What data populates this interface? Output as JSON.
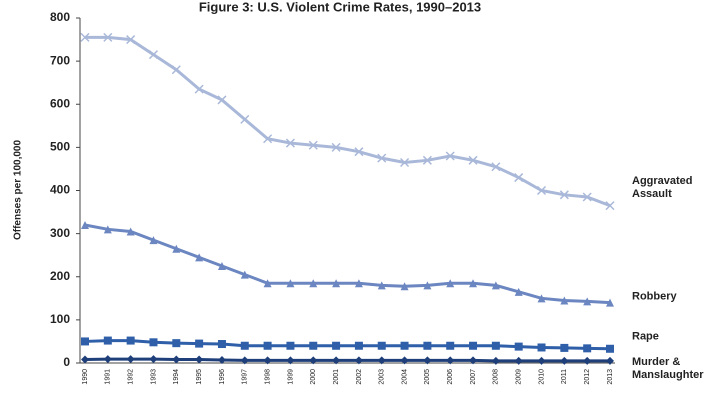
{
  "chart_data": {
    "type": "line",
    "title": "Figure 3: U.S. Violent Crime Rates, 1990–2013",
    "y_label": "Offenses per 100,000",
    "categories": [
      "1990",
      "1991",
      "1992",
      "1993",
      "1994",
      "1995",
      "1996",
      "1997",
      "1998",
      "1999",
      "2000",
      "2001",
      "2002",
      "2003",
      "2004",
      "2005",
      "2006",
      "2007",
      "2008",
      "2009",
      "2010",
      "2011",
      "2012",
      "2013"
    ],
    "series": [
      {
        "name": "Aggravated Assault",
        "color": "#a9b8d9",
        "marker": "x",
        "values": [
          755,
          755,
          750,
          715,
          680,
          635,
          610,
          565,
          520,
          510,
          505,
          500,
          490,
          475,
          465,
          470,
          480,
          470,
          455,
          430,
          400,
          390,
          385,
          365
        ]
      },
      {
        "name": "Robbery",
        "color": "#6b86c0",
        "marker": "triangle",
        "values": [
          320,
          310,
          305,
          285,
          265,
          245,
          225,
          205,
          185,
          185,
          185,
          185,
          185,
          180,
          178,
          180,
          185,
          185,
          180,
          165,
          150,
          145,
          143,
          140
        ]
      },
      {
        "name": "Rape",
        "color": "#2f5fa8",
        "marker": "square",
        "values": [
          50,
          52,
          52,
          48,
          46,
          45,
          44,
          40,
          40,
          40,
          40,
          40,
          40,
          40,
          40,
          40,
          40,
          40,
          40,
          38,
          36,
          35,
          34,
          33
        ]
      },
      {
        "name": "Murder & Manslaughter",
        "color": "#1f3f7a",
        "marker": "diamond",
        "values": [
          8,
          9,
          9,
          9,
          8,
          8,
          7,
          6,
          6,
          6,
          6,
          6,
          6,
          6,
          6,
          6,
          6,
          6,
          5,
          5,
          5,
          5,
          5,
          5
        ]
      }
    ],
    "ylim": [
      0,
      800
    ],
    "yticks": [
      0,
      100,
      200,
      300,
      400,
      500,
      600,
      700,
      800
    ]
  }
}
